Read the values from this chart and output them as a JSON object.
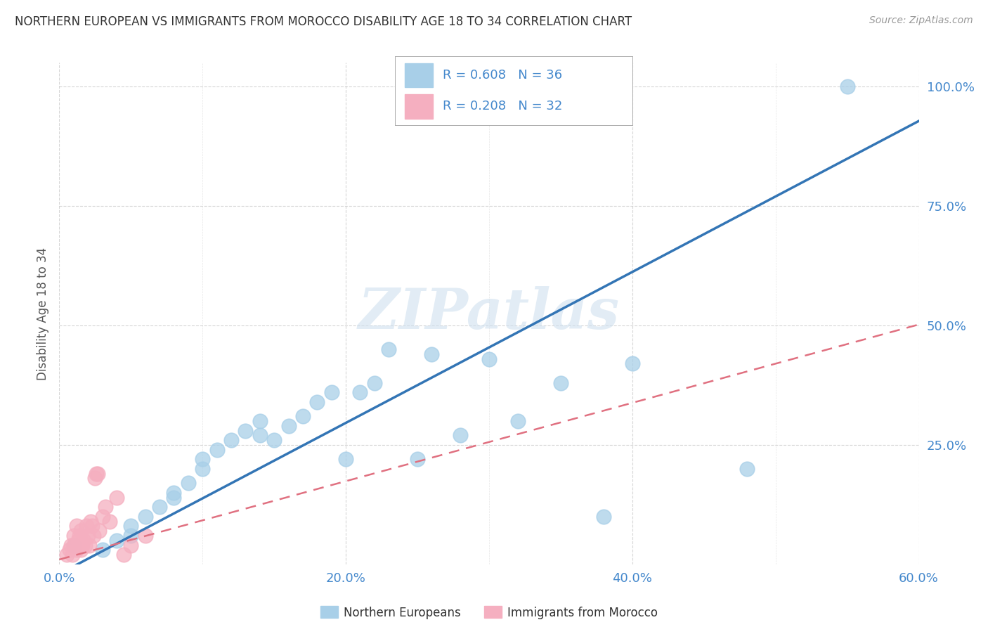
{
  "title": "NORTHERN EUROPEAN VS IMMIGRANTS FROM MOROCCO DISABILITY AGE 18 TO 34 CORRELATION CHART",
  "source": "Source: ZipAtlas.com",
  "ylabel": "Disability Age 18 to 34",
  "xlabel": "",
  "xlim": [
    0.0,
    0.6
  ],
  "ylim": [
    0.0,
    1.05
  ],
  "xtick_labels": [
    "0.0%",
    "",
    "20.0%",
    "",
    "40.0%",
    "",
    "60.0%"
  ],
  "xtick_vals": [
    0.0,
    0.1,
    0.2,
    0.3,
    0.4,
    0.5,
    0.6
  ],
  "ytick_labels": [
    "25.0%",
    "50.0%",
    "75.0%",
    "100.0%"
  ],
  "ytick_vals": [
    0.25,
    0.5,
    0.75,
    1.0
  ],
  "blue_R": 0.608,
  "blue_N": 36,
  "pink_R": 0.208,
  "pink_N": 32,
  "blue_color": "#a8cfe8",
  "pink_color": "#f5afc0",
  "blue_line_color": "#3375b5",
  "pink_line_color": "#e07080",
  "watermark_text": "ZIPatlas",
  "blue_line_slope": 1.58,
  "blue_line_intercept": -0.02,
  "pink_line_slope": 0.82,
  "pink_line_intercept": 0.01,
  "blue_scatter_x": [
    0.55,
    0.03,
    0.04,
    0.05,
    0.05,
    0.06,
    0.07,
    0.08,
    0.08,
    0.09,
    0.1,
    0.1,
    0.11,
    0.12,
    0.13,
    0.14,
    0.14,
    0.15,
    0.16,
    0.17,
    0.18,
    0.19,
    0.2,
    0.21,
    0.22,
    0.23,
    0.25,
    0.26,
    0.28,
    0.3,
    0.32,
    0.35,
    0.38,
    0.4,
    0.48,
    0.01
  ],
  "blue_scatter_y": [
    1.0,
    0.03,
    0.05,
    0.06,
    0.08,
    0.1,
    0.12,
    0.14,
    0.15,
    0.17,
    0.2,
    0.22,
    0.24,
    0.26,
    0.28,
    0.3,
    0.27,
    0.26,
    0.29,
    0.31,
    0.34,
    0.36,
    0.22,
    0.36,
    0.38,
    0.45,
    0.22,
    0.44,
    0.27,
    0.43,
    0.3,
    0.38,
    0.1,
    0.42,
    0.2,
    0.04
  ],
  "pink_scatter_x": [
    0.005,
    0.007,
    0.008,
    0.009,
    0.01,
    0.01,
    0.012,
    0.012,
    0.013,
    0.014,
    0.015,
    0.015,
    0.016,
    0.017,
    0.018,
    0.019,
    0.02,
    0.021,
    0.022,
    0.023,
    0.024,
    0.025,
    0.026,
    0.027,
    0.028,
    0.03,
    0.032,
    0.035,
    0.04,
    0.045,
    0.05,
    0.06
  ],
  "pink_scatter_y": [
    0.02,
    0.03,
    0.04,
    0.02,
    0.04,
    0.06,
    0.03,
    0.08,
    0.05,
    0.06,
    0.03,
    0.07,
    0.04,
    0.05,
    0.04,
    0.08,
    0.06,
    0.04,
    0.09,
    0.08,
    0.06,
    0.18,
    0.19,
    0.19,
    0.07,
    0.1,
    0.12,
    0.09,
    0.14,
    0.02,
    0.04,
    0.06
  ],
  "grid_color": "#cccccc",
  "background_color": "#ffffff",
  "legend_blue_text": "R = 0.608   N = 36",
  "legend_pink_text": "R = 0.208   N = 32",
  "bottom_legend_blue": "Northern Europeans",
  "bottom_legend_pink": "Immigrants from Morocco"
}
